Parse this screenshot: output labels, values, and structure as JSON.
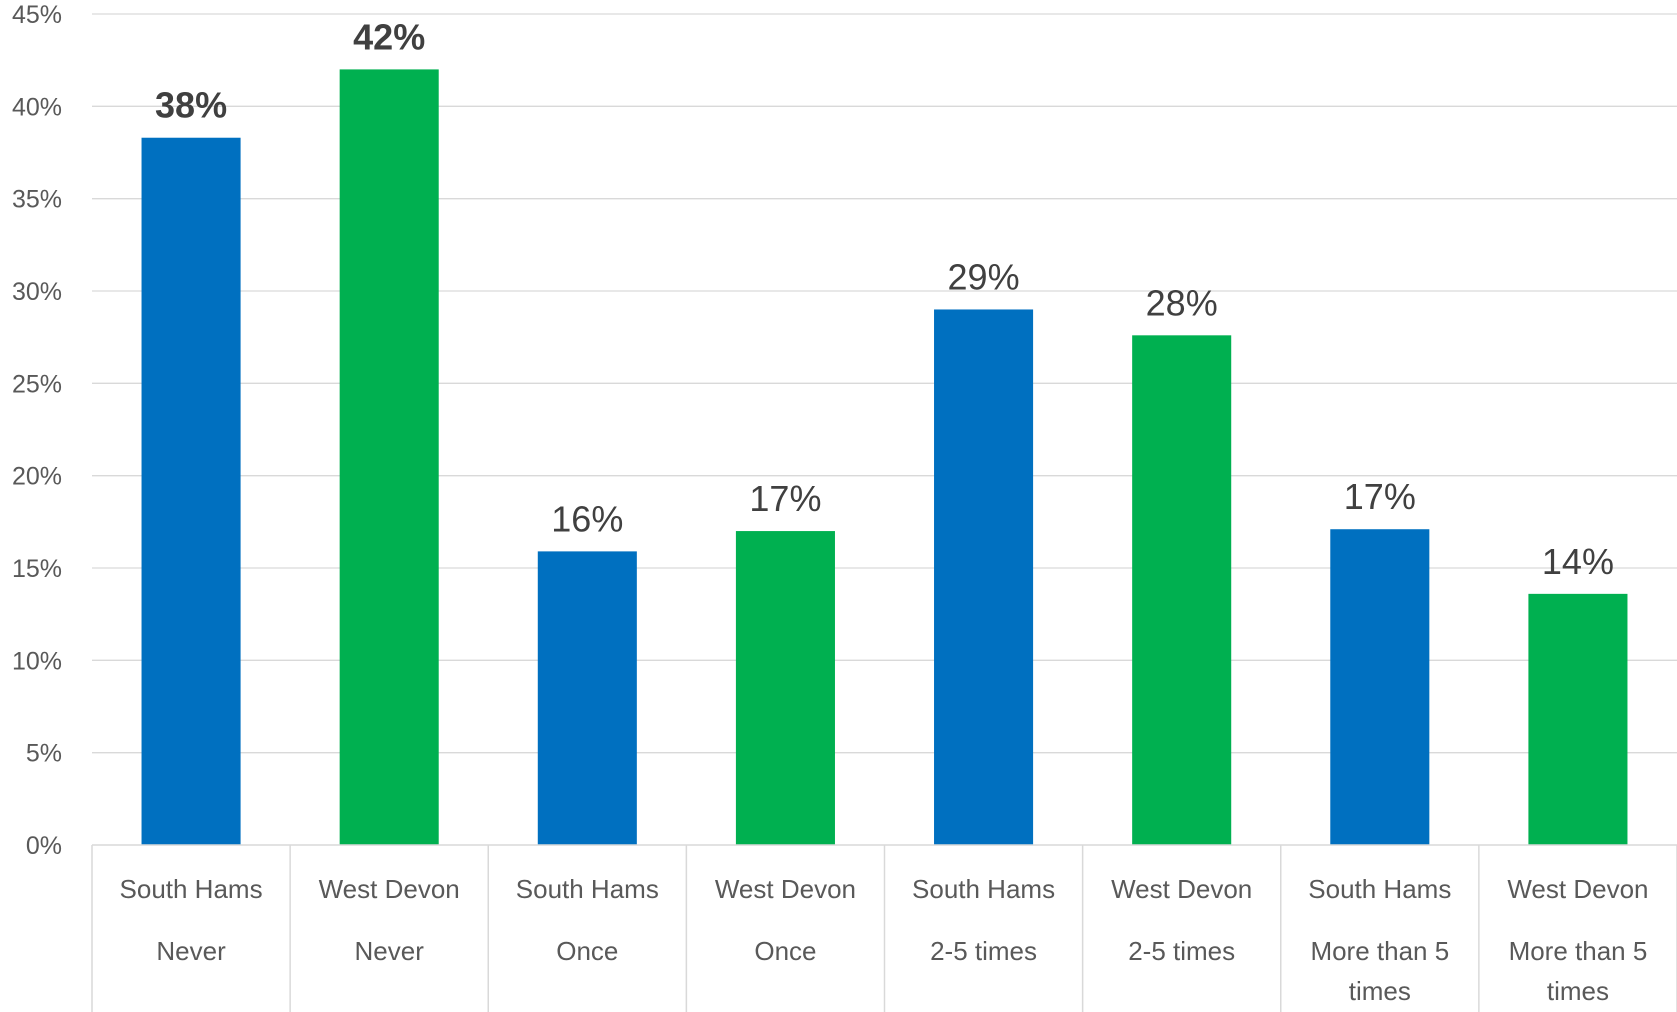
{
  "chart_data": {
    "type": "bar",
    "ylim": [
      0,
      45
    ],
    "yticks": [
      0,
      5,
      10,
      15,
      20,
      25,
      30,
      35,
      40,
      45
    ],
    "ytick_labels": [
      "0%",
      "5%",
      "10%",
      "15%",
      "20%",
      "25%",
      "30%",
      "35%",
      "40%",
      "45%"
    ],
    "grid": true,
    "bars": [
      {
        "region": "South Hams",
        "group": [
          "Never"
        ],
        "value": 38.3,
        "label": "38%",
        "color": "#0070C0",
        "bold": true
      },
      {
        "region": "West Devon",
        "group": [
          "Never"
        ],
        "value": 42.0,
        "label": "42%",
        "color": "#00B050",
        "bold": true
      },
      {
        "region": "South Hams",
        "group": [
          "Once"
        ],
        "value": 15.9,
        "label": "16%",
        "color": "#0070C0",
        "bold": false
      },
      {
        "region": "West Devon",
        "group": [
          "Once"
        ],
        "value": 17.0,
        "label": "17%",
        "color": "#00B050",
        "bold": false
      },
      {
        "region": "South Hams",
        "group": [
          "2-5 times"
        ],
        "value": 29.0,
        "label": "29%",
        "color": "#0070C0",
        "bold": false
      },
      {
        "region": "West Devon",
        "group": [
          "2-5 times"
        ],
        "value": 27.6,
        "label": "28%",
        "color": "#00B050",
        "bold": false
      },
      {
        "region": "South Hams",
        "group": [
          "More than 5",
          "times"
        ],
        "value": 17.1,
        "label": "17%",
        "color": "#0070C0",
        "bold": false
      },
      {
        "region": "West Devon",
        "group": [
          "More than 5",
          "times"
        ],
        "value": 13.6,
        "label": "14%",
        "color": "#00B050",
        "bold": false
      }
    ]
  }
}
